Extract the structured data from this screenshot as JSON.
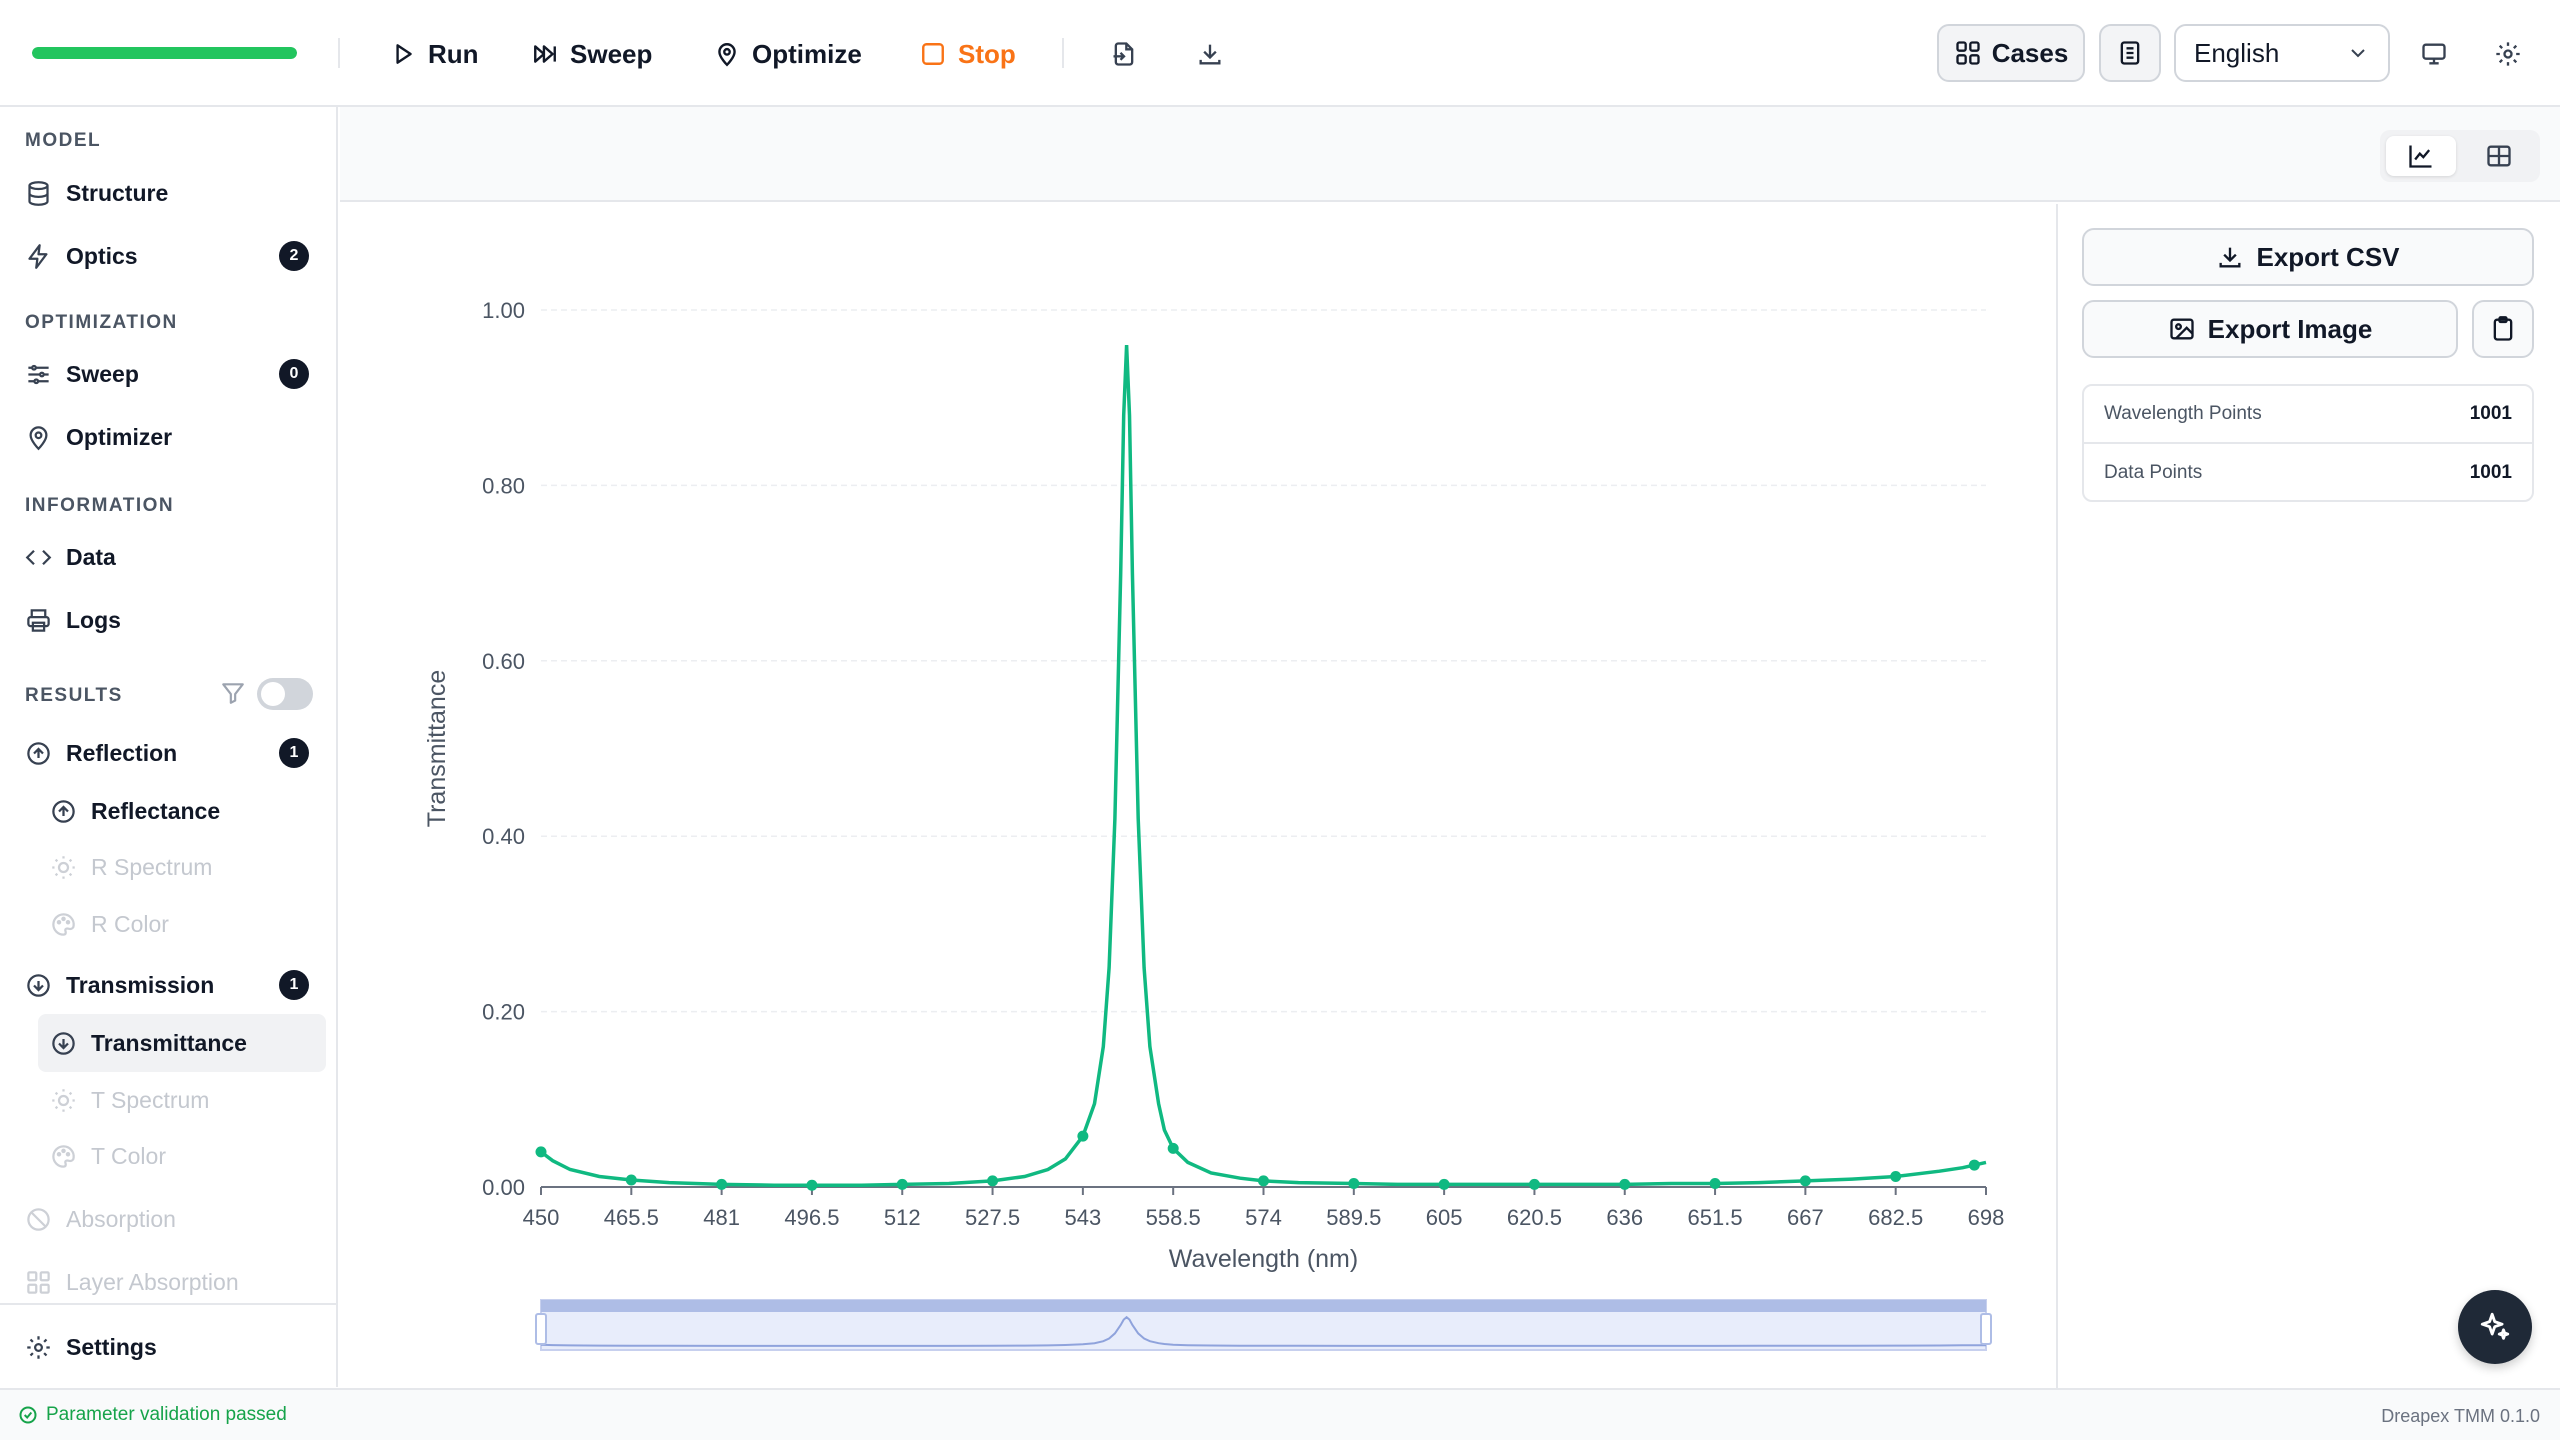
{
  "toolbar": {
    "progress": 1.0,
    "run_label": "Run",
    "sweep_label": "Sweep",
    "optimize_label": "Optimize",
    "stop_label": "Stop",
    "cases_label": "Cases",
    "language_value": "English"
  },
  "sidebar": {
    "sections": {
      "model": "MODEL",
      "optimization": "OPTIMIZATION",
      "information": "INFORMATION",
      "results": "RESULTS"
    },
    "items": {
      "structure": "Structure",
      "optics": "Optics",
      "optics_badge": "2",
      "sweep": "Sweep",
      "sweep_badge": "0",
      "optimizer": "Optimizer",
      "data": "Data",
      "logs": "Logs",
      "reflection": "Reflection",
      "reflection_badge": "1",
      "reflectance": "Reflectance",
      "r_spectrum": "R Spectrum",
      "r_color": "R Color",
      "transmission": "Transmission",
      "transmission_badge": "1",
      "transmittance": "Transmittance",
      "t_spectrum": "T Spectrum",
      "t_color": "T Color",
      "absorption": "Absorption",
      "layer_absorption": "Layer Absorption",
      "settings": "Settings"
    }
  },
  "right_panel": {
    "export_csv": "Export CSV",
    "export_image": "Export Image",
    "stats": [
      {
        "label": "Wavelength Points",
        "value": "1001"
      },
      {
        "label": "Data Points",
        "value": "1001"
      }
    ]
  },
  "status": {
    "message": "Parameter validation passed",
    "version": "Dreapex TMM 0.1.0"
  },
  "colors": {
    "accent": "#10b981",
    "progress": "#22c55e",
    "stop": "#f97316"
  },
  "chart_data": {
    "type": "line",
    "xlabel": "Wavelength (nm)",
    "ylabel": "Transmittance",
    "xlim": [
      450,
      698
    ],
    "ylim": [
      0,
      1.0
    ],
    "y_ticks": [
      "0.00",
      "0.20",
      "0.40",
      "0.60",
      "0.80",
      "1.00"
    ],
    "x_ticks": [
      "450",
      "465.5",
      "481",
      "496.5",
      "512",
      "527.5",
      "543",
      "558.5",
      "574",
      "589.5",
      "605",
      "620.5",
      "636",
      "651.5",
      "667",
      "682.5",
      "698"
    ],
    "grid": true,
    "series": [
      {
        "color": "#10b981",
        "peak": {
          "x": 550.5,
          "y": 0.96
        },
        "curve": [
          [
            450,
            0.04
          ],
          [
            452,
            0.03
          ],
          [
            455,
            0.02
          ],
          [
            460,
            0.012
          ],
          [
            465.5,
            0.008
          ],
          [
            472,
            0.005
          ],
          [
            481,
            0.003
          ],
          [
            490,
            0.002
          ],
          [
            496.5,
            0.002
          ],
          [
            505,
            0.002
          ],
          [
            512,
            0.003
          ],
          [
            520,
            0.004
          ],
          [
            527.5,
            0.007
          ],
          [
            533,
            0.012
          ],
          [
            537,
            0.02
          ],
          [
            540,
            0.032
          ],
          [
            543,
            0.058
          ],
          [
            545,
            0.095
          ],
          [
            546.5,
            0.16
          ],
          [
            547.5,
            0.25
          ],
          [
            548.5,
            0.42
          ],
          [
            549.5,
            0.7
          ],
          [
            550.0,
            0.88
          ],
          [
            550.5,
            0.96
          ],
          [
            551.0,
            0.88
          ],
          [
            551.5,
            0.7
          ],
          [
            552.5,
            0.42
          ],
          [
            553.5,
            0.25
          ],
          [
            554.5,
            0.16
          ],
          [
            556,
            0.095
          ],
          [
            557,
            0.065
          ],
          [
            558.5,
            0.044
          ],
          [
            561,
            0.028
          ],
          [
            565,
            0.016
          ],
          [
            570,
            0.01
          ],
          [
            574,
            0.007
          ],
          [
            580,
            0.005
          ],
          [
            589.5,
            0.004
          ],
          [
            597,
            0.003
          ],
          [
            605,
            0.003
          ],
          [
            612,
            0.003
          ],
          [
            620.5,
            0.003
          ],
          [
            628,
            0.003
          ],
          [
            636,
            0.003
          ],
          [
            644,
            0.004
          ],
          [
            651.5,
            0.004
          ],
          [
            659,
            0.005
          ],
          [
            667,
            0.007
          ],
          [
            675,
            0.009
          ],
          [
            682.5,
            0.012
          ],
          [
            690,
            0.018
          ],
          [
            694,
            0.022
          ],
          [
            698,
            0.028
          ]
        ],
        "markers": [
          [
            450,
            0.04
          ],
          [
            465.5,
            0.008
          ],
          [
            481,
            0.003
          ],
          [
            496.5,
            0.002
          ],
          [
            512,
            0.003
          ],
          [
            527.5,
            0.007
          ],
          [
            543,
            0.058
          ],
          [
            558.5,
            0.044
          ],
          [
            574,
            0.007
          ],
          [
            589.5,
            0.004
          ],
          [
            605,
            0.003
          ],
          [
            620.5,
            0.003
          ],
          [
            636,
            0.003
          ],
          [
            651.5,
            0.004
          ],
          [
            667,
            0.007
          ],
          [
            682.5,
            0.012
          ],
          [
            696,
            0.025
          ]
        ]
      }
    ]
  }
}
